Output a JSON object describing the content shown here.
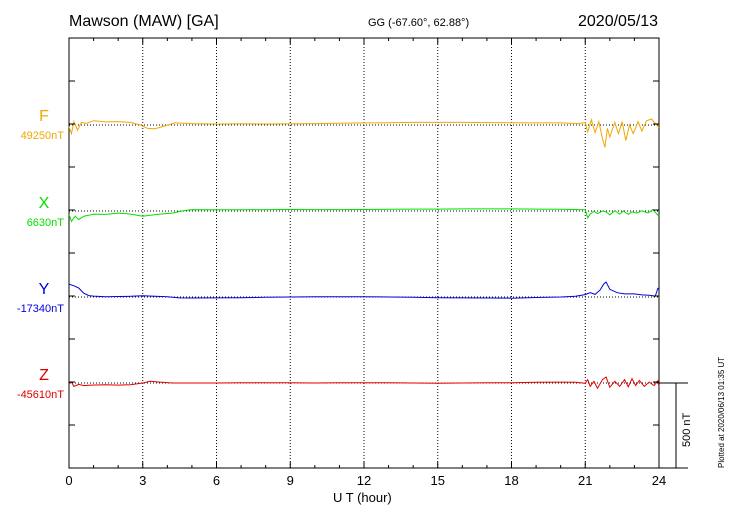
{
  "header": {
    "station": "Mawson (MAW)  [GA]",
    "coords": "GG (-67.60°,  62.88°)",
    "date": "2020/05/13"
  },
  "footer": {
    "plotted": "Plotted at 2020/06/13 01:35 UT"
  },
  "chart_data": {
    "type": "line",
    "title": "Mawson (MAW)  [GA]",
    "xlabel": "U T (hour)",
    "xlim": [
      0,
      24
    ],
    "x_ticks": [
      0,
      3,
      6,
      9,
      12,
      15,
      18,
      21,
      24
    ],
    "x_tick_labels": [
      "0",
      "3",
      "6",
      "9",
      "12",
      "15",
      "18",
      "21",
      "24"
    ],
    "scale_bar": {
      "value": 500,
      "label": "500 nT"
    },
    "grid": "dotted vertical lines every 3 h, dotted baseline per component",
    "series": [
      {
        "name": "F",
        "baseline_label": "49250nT",
        "baseline": 49250,
        "color": "#f0a800",
        "points": [
          [
            0,
            49240
          ],
          [
            0.1,
            49200
          ],
          [
            0.2,
            49270
          ],
          [
            0.35,
            49220
          ],
          [
            0.5,
            49265
          ],
          [
            0.7,
            49260
          ],
          [
            1.0,
            49275
          ],
          [
            1.5,
            49268
          ],
          [
            2.0,
            49270
          ],
          [
            2.5,
            49265
          ],
          [
            2.9,
            49250
          ],
          [
            3.2,
            49230
          ],
          [
            3.5,
            49228
          ],
          [
            3.9,
            49245
          ],
          [
            4.3,
            49262
          ],
          [
            5.0,
            49258
          ],
          [
            6,
            49256
          ],
          [
            7,
            49257
          ],
          [
            8,
            49256
          ],
          [
            9,
            49257
          ],
          [
            10,
            49258
          ],
          [
            11,
            49260
          ],
          [
            12,
            49262
          ],
          [
            13,
            49263
          ],
          [
            14,
            49265
          ],
          [
            15,
            49265
          ],
          [
            16,
            49265
          ],
          [
            17,
            49264
          ],
          [
            18,
            49263
          ],
          [
            19,
            49262
          ],
          [
            20,
            49262
          ],
          [
            20.7,
            49258
          ],
          [
            21.0,
            49264
          ],
          [
            21.1,
            49210
          ],
          [
            21.25,
            49280
          ],
          [
            21.4,
            49205
          ],
          [
            21.55,
            49270
          ],
          [
            21.7,
            49170
          ],
          [
            21.8,
            49120
          ],
          [
            21.9,
            49230
          ],
          [
            22.0,
            49180
          ],
          [
            22.2,
            49265
          ],
          [
            22.35,
            49200
          ],
          [
            22.5,
            49270
          ],
          [
            22.65,
            49160
          ],
          [
            22.8,
            49250
          ],
          [
            22.95,
            49200
          ],
          [
            23.15,
            49270
          ],
          [
            23.3,
            49215
          ],
          [
            23.5,
            49275
          ],
          [
            23.7,
            49285
          ],
          [
            23.85,
            49260
          ],
          [
            24,
            49235
          ]
        ]
      },
      {
        "name": "X",
        "baseline_label": "6630nT",
        "baseline": 6630,
        "color": "#00e000",
        "points": [
          [
            0,
            6610
          ],
          [
            0.1,
            6570
          ],
          [
            0.25,
            6600
          ],
          [
            0.4,
            6580
          ],
          [
            0.6,
            6600
          ],
          [
            0.8,
            6605
          ],
          [
            1.0,
            6612
          ],
          [
            1.5,
            6610
          ],
          [
            2.0,
            6618
          ],
          [
            2.5,
            6612
          ],
          [
            3.0,
            6600
          ],
          [
            3.3,
            6605
          ],
          [
            3.7,
            6612
          ],
          [
            4.2,
            6618
          ],
          [
            4.7,
            6633
          ],
          [
            5.0,
            6638
          ],
          [
            6,
            6637
          ],
          [
            7,
            6637
          ],
          [
            8,
            6638
          ],
          [
            9,
            6639
          ],
          [
            10,
            6638
          ],
          [
            11,
            6638
          ],
          [
            12,
            6639
          ],
          [
            13,
            6640
          ],
          [
            14,
            6641
          ],
          [
            15,
            6641
          ],
          [
            16,
            6642
          ],
          [
            17,
            6642
          ],
          [
            18,
            6642
          ],
          [
            19,
            6641
          ],
          [
            20,
            6640
          ],
          [
            20.8,
            6638
          ],
          [
            21.0,
            6637
          ],
          [
            21.1,
            6590
          ],
          [
            21.2,
            6612
          ],
          [
            21.35,
            6628
          ],
          [
            21.5,
            6615
          ],
          [
            21.7,
            6630
          ],
          [
            21.85,
            6625
          ],
          [
            22.0,
            6608
          ],
          [
            22.2,
            6632
          ],
          [
            22.4,
            6612
          ],
          [
            22.55,
            6630
          ],
          [
            22.75,
            6610
          ],
          [
            22.9,
            6625
          ],
          [
            23.1,
            6618
          ],
          [
            23.3,
            6632
          ],
          [
            23.55,
            6618
          ],
          [
            23.75,
            6638
          ],
          [
            23.9,
            6615
          ],
          [
            24,
            6600
          ]
        ]
      },
      {
        "name": "Y",
        "baseline_label": "-17340nT",
        "baseline": -17340,
        "color": "#0000e0",
        "points": [
          [
            0,
            -17265
          ],
          [
            0.2,
            -17275
          ],
          [
            0.4,
            -17288
          ],
          [
            0.6,
            -17318
          ],
          [
            0.8,
            -17332
          ],
          [
            1.0,
            -17335
          ],
          [
            1.5,
            -17338
          ],
          [
            2.0,
            -17337
          ],
          [
            2.5,
            -17336
          ],
          [
            3.0,
            -17333
          ],
          [
            3.5,
            -17336
          ],
          [
            4.0,
            -17338
          ],
          [
            4.5,
            -17345
          ],
          [
            5.0,
            -17346
          ],
          [
            6,
            -17345
          ],
          [
            7,
            -17344
          ],
          [
            8,
            -17342
          ],
          [
            9,
            -17340
          ],
          [
            10,
            -17339
          ],
          [
            11,
            -17338
          ],
          [
            12,
            -17338
          ],
          [
            13,
            -17340
          ],
          [
            14,
            -17342
          ],
          [
            15,
            -17344
          ],
          [
            16,
            -17345
          ],
          [
            17,
            -17346
          ],
          [
            18,
            -17347
          ],
          [
            19,
            -17343
          ],
          [
            20,
            -17340
          ],
          [
            20.6,
            -17336
          ],
          [
            21.0,
            -17326
          ],
          [
            21.2,
            -17315
          ],
          [
            21.4,
            -17325
          ],
          [
            21.6,
            -17300
          ],
          [
            21.75,
            -17265
          ],
          [
            21.85,
            -17253
          ],
          [
            22.0,
            -17295
          ],
          [
            22.3,
            -17315
          ],
          [
            22.6,
            -17322
          ],
          [
            23.0,
            -17322
          ],
          [
            23.3,
            -17328
          ],
          [
            23.6,
            -17330
          ],
          [
            23.85,
            -17335
          ],
          [
            23.95,
            -17290
          ],
          [
            24,
            -17295
          ]
        ]
      },
      {
        "name": "Z",
        "baseline_label": "-45610nT",
        "baseline": -45610,
        "color": "#e00000",
        "points": [
          [
            0,
            -45615
          ],
          [
            0.1,
            -45605
          ],
          [
            0.2,
            -45630
          ],
          [
            0.4,
            -45618
          ],
          [
            0.6,
            -45625
          ],
          [
            0.9,
            -45622
          ],
          [
            1.5,
            -45620
          ],
          [
            2.0,
            -45622
          ],
          [
            2.5,
            -45620
          ],
          [
            3.0,
            -45610
          ],
          [
            3.3,
            -45600
          ],
          [
            3.7,
            -45605
          ],
          [
            4.2,
            -45610
          ],
          [
            5.0,
            -45610
          ],
          [
            6,
            -45610
          ],
          [
            7,
            -45608
          ],
          [
            8,
            -45608
          ],
          [
            9,
            -45608
          ],
          [
            10,
            -45610
          ],
          [
            11,
            -45609
          ],
          [
            12,
            -45608
          ],
          [
            13,
            -45609
          ],
          [
            14,
            -45610
          ],
          [
            15,
            -45611
          ],
          [
            16,
            -45610
          ],
          [
            17,
            -45609
          ],
          [
            18,
            -45608
          ],
          [
            19,
            -45606
          ],
          [
            20,
            -45605
          ],
          [
            20.6,
            -45606
          ],
          [
            21.0,
            -45612
          ],
          [
            21.1,
            -45590
          ],
          [
            21.2,
            -45630
          ],
          [
            21.35,
            -45600
          ],
          [
            21.5,
            -45640
          ],
          [
            21.7,
            -45590
          ],
          [
            21.85,
            -45575
          ],
          [
            22.0,
            -45635
          ],
          [
            22.2,
            -45600
          ],
          [
            22.4,
            -45630
          ],
          [
            22.6,
            -45590
          ],
          [
            22.75,
            -45632
          ],
          [
            22.9,
            -45585
          ],
          [
            23.05,
            -45625
          ],
          [
            23.2,
            -45595
          ],
          [
            23.4,
            -45630
          ],
          [
            23.6,
            -45605
          ],
          [
            23.8,
            -45625
          ],
          [
            23.95,
            -45598
          ],
          [
            24,
            -45630
          ]
        ]
      }
    ]
  }
}
